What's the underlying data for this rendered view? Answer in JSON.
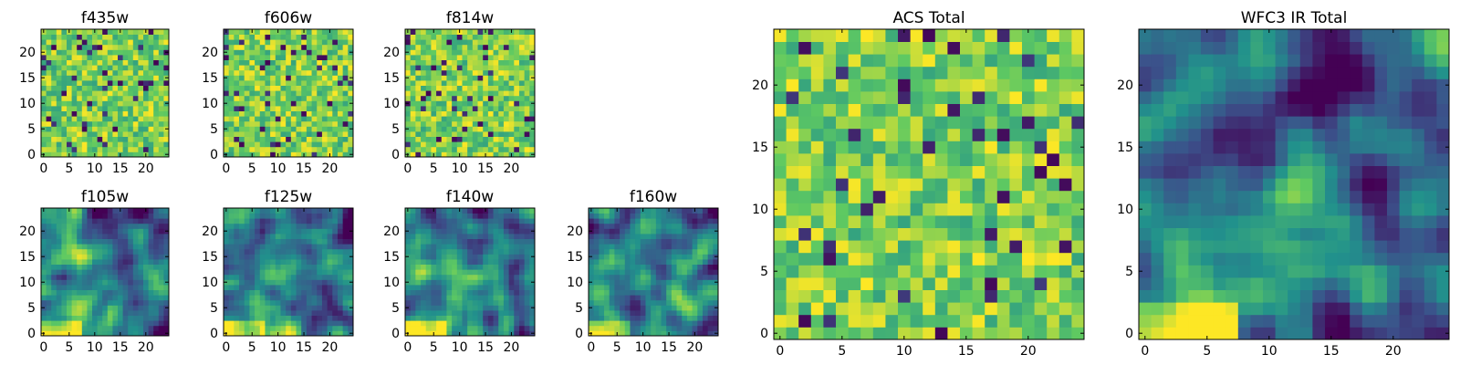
{
  "figure": {
    "layout": "2x4 grid of small heatmaps on the left, two large heatmaps on the right",
    "colormap": "viridis",
    "colormap_stops": [
      "#440154",
      "#3b528b",
      "#21918c",
      "#5ec962",
      "#fde725"
    ]
  },
  "chart_data": [
    {
      "type": "heatmap",
      "title": "f435w",
      "xlabel": "",
      "ylabel": "",
      "xlim": [
        -0.5,
        24.5
      ],
      "ylim": [
        -0.5,
        24.5
      ],
      "xticks": [
        0,
        5,
        10,
        15,
        20
      ],
      "yticks": [
        0,
        5,
        10,
        15,
        20
      ],
      "grid_size": [
        25,
        25
      ],
      "texture": "noise",
      "seed": 11,
      "z_description": "pixel-level noise, mostly green-yellow with scattered dark pixels"
    },
    {
      "type": "heatmap",
      "title": "f606w",
      "xlabel": "",
      "ylabel": "",
      "xlim": [
        -0.5,
        24.5
      ],
      "ylim": [
        -0.5,
        24.5
      ],
      "xticks": [
        0,
        5,
        10,
        15,
        20
      ],
      "yticks": [
        0,
        5,
        10,
        15,
        20
      ],
      "grid_size": [
        25,
        25
      ],
      "texture": "noise",
      "seed": 23,
      "z_description": "pixel-level noise, green-yellow"
    },
    {
      "type": "heatmap",
      "title": "f814w",
      "xlabel": "",
      "ylabel": "",
      "xlim": [
        -0.5,
        24.5
      ],
      "ylim": [
        -0.5,
        24.5
      ],
      "xticks": [
        0,
        5,
        10,
        15,
        20
      ],
      "yticks": [
        0,
        5,
        10,
        15,
        20
      ],
      "grid_size": [
        25,
        25
      ],
      "texture": "noise",
      "seed": 37,
      "z_description": "pixel-level noise with bright patch near bottom-left"
    },
    {
      "type": "heatmap",
      "title": "f105w",
      "xlabel": "",
      "ylabel": "",
      "xlim": [
        -0.5,
        24.5
      ],
      "ylim": [
        -0.5,
        24.5
      ],
      "xticks": [
        0,
        5,
        10,
        15,
        20
      ],
      "yticks": [
        0,
        5,
        10,
        15,
        20
      ],
      "grid_size": [
        25,
        25
      ],
      "texture": "smooth",
      "seed": 41,
      "z_description": "smooth field, bright toward bottom-left"
    },
    {
      "type": "heatmap",
      "title": "f125w",
      "xlabel": "",
      "ylabel": "",
      "xlim": [
        -0.5,
        24.5
      ],
      "ylim": [
        -0.5,
        24.5
      ],
      "xticks": [
        0,
        5,
        10,
        15,
        20
      ],
      "yticks": [
        0,
        5,
        10,
        15,
        20
      ],
      "grid_size": [
        25,
        25
      ],
      "texture": "smooth",
      "seed": 53,
      "z_description": "smooth field, bright toward bottom-left"
    },
    {
      "type": "heatmap",
      "title": "f140w",
      "xlabel": "",
      "ylabel": "",
      "xlim": [
        -0.5,
        24.5
      ],
      "ylim": [
        -0.5,
        24.5
      ],
      "xticks": [
        0,
        5,
        10,
        15,
        20
      ],
      "yticks": [
        0,
        5,
        10,
        15,
        20
      ],
      "grid_size": [
        25,
        25
      ],
      "texture": "smooth",
      "seed": 67,
      "z_description": "smooth field, bright toward bottom-left"
    },
    {
      "type": "heatmap",
      "title": "f160w",
      "xlabel": "",
      "ylabel": "",
      "xlim": [
        -0.5,
        24.5
      ],
      "ylim": [
        -0.5,
        24.5
      ],
      "xticks": [
        0,
        5,
        10,
        15,
        20
      ],
      "yticks": [
        0,
        5,
        10,
        15,
        20
      ],
      "grid_size": [
        25,
        25
      ],
      "texture": "smooth",
      "seed": 79,
      "z_description": "smooth teal field, bright yellow at bottom-left"
    },
    {
      "type": "heatmap",
      "title": "ACS Total",
      "xlabel": "",
      "ylabel": "",
      "xlim": [
        -0.5,
        24.5
      ],
      "ylim": [
        -0.5,
        24.5
      ],
      "xticks": [
        0,
        5,
        10,
        15,
        20
      ],
      "yticks": [
        0,
        5,
        10,
        15,
        20
      ],
      "grid_size": [
        25,
        25
      ],
      "texture": "noise",
      "seed": 97,
      "z_description": "blocky green-yellow noise with a few dark pixels"
    },
    {
      "type": "heatmap",
      "title": "WFC3 IR Total",
      "xlabel": "",
      "ylabel": "",
      "xlim": [
        -0.5,
        24.5
      ],
      "ylim": [
        -0.5,
        24.5
      ],
      "xticks": [
        0,
        5,
        10,
        15,
        20
      ],
      "yticks": [
        0,
        5,
        10,
        15,
        20
      ],
      "grid_size": [
        25,
        25
      ],
      "texture": "smooth",
      "seed": 101,
      "z_description": "smooth teal-green field, bright yellow at bottom-left, dark spots top"
    }
  ]
}
